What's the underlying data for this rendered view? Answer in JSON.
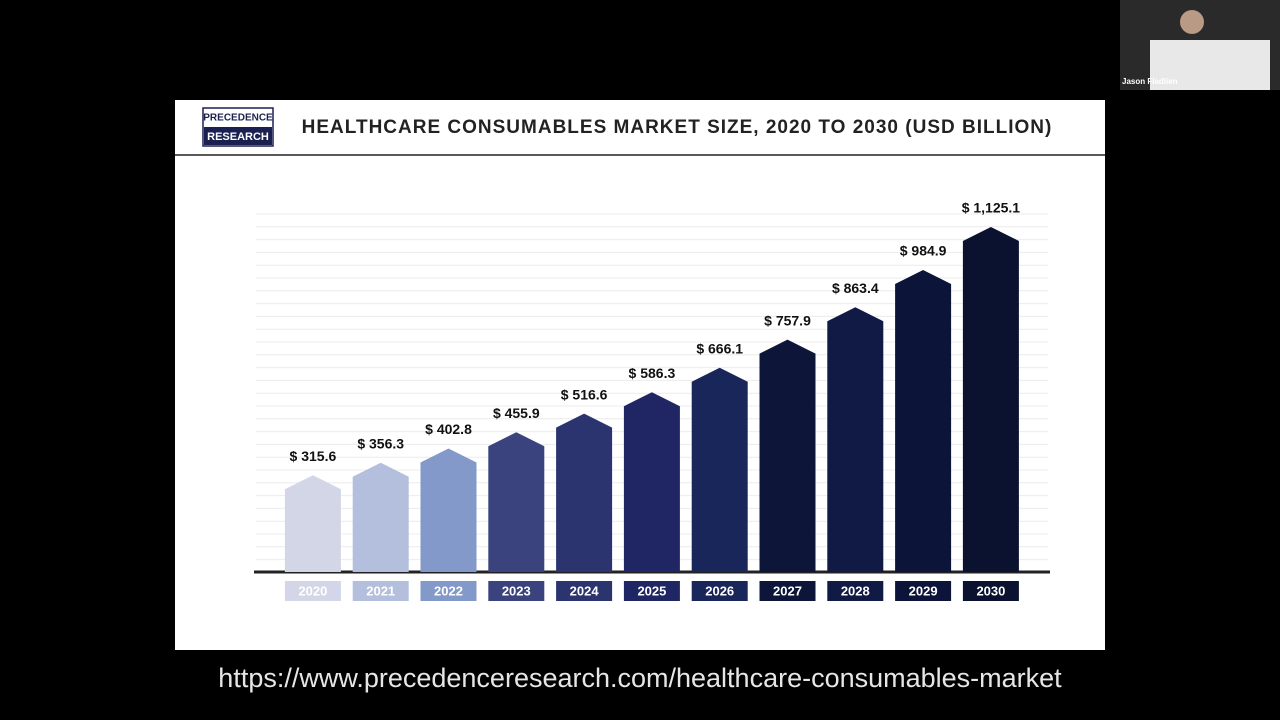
{
  "presenter": "Jason Fladlien",
  "logo": {
    "line1": "PRECEDENCE",
    "line2": "RESEARCH"
  },
  "url": "https://www.precedenceresearch.com/healthcare-consumables-market",
  "chart_data": {
    "type": "bar",
    "title": "HEALTHCARE CONSUMABLES MARKET SIZE, 2020 TO 2030 (USD BILLION)",
    "categories": [
      "2020",
      "2021",
      "2022",
      "2023",
      "2024",
      "2025",
      "2026",
      "2027",
      "2028",
      "2029",
      "2030"
    ],
    "values": [
      315.6,
      356.3,
      402.8,
      455.9,
      516.6,
      586.3,
      666.1,
      757.9,
      863.4,
      984.9,
      1125.1
    ],
    "value_labels": [
      "$ 315.6",
      "$ 356.3",
      "$ 402.8",
      "$ 455.9",
      "$ 516.6",
      "$ 586.3",
      "$ 666.1",
      "$ 757.9",
      "$ 863.4",
      "$ 984.9",
      "$ 1,125.1"
    ],
    "colors": [
      "#d3d6e6",
      "#b4bedd",
      "#8399c9",
      "#3a437e",
      "#2c3470",
      "#1f2663",
      "#18265a",
      "#0d1638",
      "#101a44",
      "#0c143a",
      "#0a1230"
    ],
    "ylim": [
      0,
      1200
    ]
  }
}
